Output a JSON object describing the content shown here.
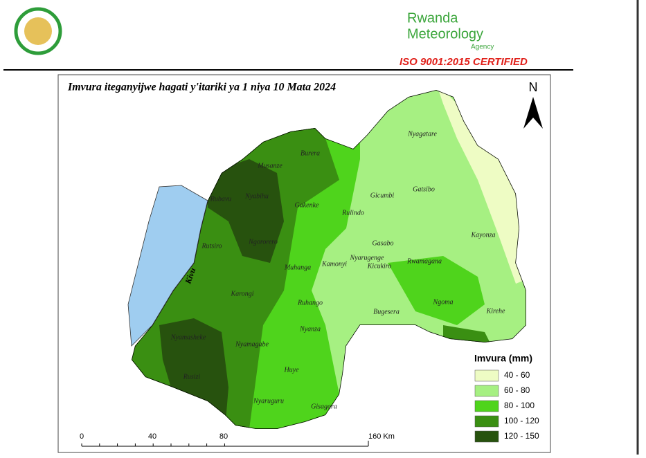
{
  "header": {
    "brand_line1": "Rwanda",
    "brand_line2": "Meteorology",
    "brand_line3": "Agency",
    "certification": "ISO 9001:2015 CERTIFIED"
  },
  "map": {
    "title": "Imvura iteganyijwe hagati y'itariki ya 1 niya 10 Mata 2024",
    "north": "N",
    "lake": "Kivu",
    "districts": [
      "Nyagatare",
      "Burera",
      "Musanze",
      "Gicumbi",
      "Gatsibo",
      "Rubavu",
      "Nyabihu",
      "Gakenke",
      "Rulindo",
      "Kayonza",
      "Rutsiro",
      "Ngororero",
      "Gasabo",
      "Muhanga",
      "Kamonyi",
      "Nyarugenge",
      "Kicukiro",
      "Rwamagana",
      "Karongi",
      "Ruhango",
      "Ngoma",
      "Bugesera",
      "Kirehe",
      "Nyamasheke",
      "Nyanza",
      "Nyamagabe",
      "Huye",
      "Rusizi",
      "Gisagara",
      "Nyaruguru"
    ],
    "legend": {
      "title": "Imvura (mm)",
      "items": [
        {
          "label": "40 - 60",
          "color": "#eefcc4"
        },
        {
          "label": "60 - 80",
          "color": "#a6f082"
        },
        {
          "label": "80 - 100",
          "color": "#4fd41c"
        },
        {
          "label": "100 - 120",
          "color": "#3a8f12"
        },
        {
          "label": "120 - 150",
          "color": "#27520e"
        }
      ]
    },
    "scale": {
      "labels": [
        "0",
        "40",
        "80",
        "160 Km"
      ]
    }
  }
}
